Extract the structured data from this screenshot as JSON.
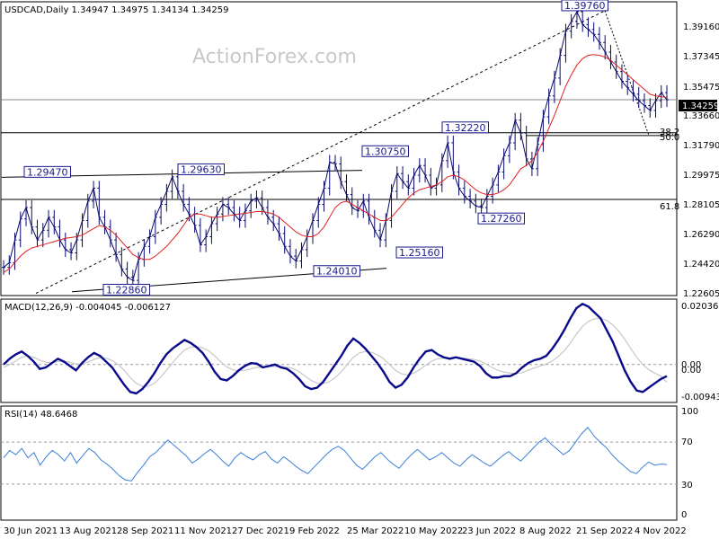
{
  "watermark": "ActionForex.com",
  "price_panel": {
    "header": "USDCAD,Daily  1.34947 1.34975 1.34134 1.34259",
    "current_price_label": "1.34259",
    "price_ticks": [
      "1.39160",
      "1.37345",
      "1.35475",
      "1.33660",
      "1.31790",
      "1.29975",
      "1.28105",
      "1.26290",
      "1.24420",
      "1.22605"
    ],
    "fib_labels": [
      "38.2",
      "50.0",
      "61.8"
    ],
    "annotations": [
      "1.39760",
      "1.32220",
      "1.30750",
      "1.29630",
      "1.29470",
      "1.27260",
      "1.25160",
      "1.24010",
      "1.22860"
    ]
  },
  "macd_panel": {
    "header": "MACD(12,26,9) -0.004045 -0.006127",
    "ticks": [
      "0.02036",
      "0.00",
      "0.00",
      "-0.009438"
    ]
  },
  "rsi_panel": {
    "header": "RSI(14) 48.6468",
    "ticks": [
      "100",
      "70",
      "30",
      "0"
    ]
  },
  "x_axis": [
    "30 Jun 2021",
    "13 Aug 2021",
    "28 Sep 2021",
    "11 Nov 2021",
    "27 Dec 2021",
    "9 Feb 2022",
    "25 Mar 2022",
    "10 May 2022",
    "23 Jun 2022",
    "8 Aug 2022",
    "21 Sep 2022",
    "4 Nov 2022"
  ],
  "colors": {
    "price_bars": "#0a0a6e",
    "sma": "#e02020",
    "macd_line": "#0a0a8c",
    "signal_line": "#c8c8c8",
    "rsi_line": "#3a7fd8",
    "label_text": "#1a1a8c"
  },
  "chart_data": [
    {
      "type": "line",
      "title": "USDCAD,Daily",
      "series": [
        {
          "name": "USDCAD",
          "values": [
            1.239,
            1.242,
            1.256,
            1.269,
            1.276,
            1.264,
            1.256,
            1.262,
            1.27,
            1.264,
            1.256,
            1.25,
            1.248,
            1.256,
            1.268,
            1.28,
            1.288,
            1.27,
            1.264,
            1.256,
            1.247,
            1.238,
            1.233,
            1.231,
            1.244,
            1.252,
            1.258,
            1.27,
            1.278,
            1.286,
            1.295,
            1.286,
            1.278,
            1.272,
            1.265,
            1.253,
            1.258,
            1.266,
            1.272,
            1.278,
            1.276,
            1.272,
            1.268,
            1.274,
            1.28,
            1.282,
            1.276,
            1.27,
            1.266,
            1.26,
            1.252,
            1.246,
            1.243,
            1.25,
            1.258,
            1.268,
            1.278,
            1.288,
            1.304,
            1.303,
            1.292,
            1.284,
            1.276,
            1.274,
            1.28,
            1.27,
            1.262,
            1.256,
            1.268,
            1.286,
            1.297,
            1.292,
            1.288,
            1.296,
            1.302,
            1.296,
            1.288,
            1.29,
            1.305,
            1.316,
            1.298,
            1.288,
            1.283,
            1.28,
            1.277,
            1.276,
            1.283,
            1.29,
            1.298,
            1.308,
            1.316,
            1.33,
            1.322,
            1.306,
            1.3,
            1.315,
            1.332,
            1.345,
            1.356,
            1.37,
            1.385,
            1.391,
            1.397,
            1.389,
            1.386,
            1.383,
            1.378,
            1.372,
            1.366,
            1.36,
            1.354,
            1.35,
            1.346,
            1.342,
            1.339,
            1.336,
            1.342,
            1.347,
            1.3426
          ]
        },
        {
          "name": "SMA",
          "values": [
            1.236,
            1.238,
            1.242,
            1.246,
            1.249,
            1.251,
            1.252,
            1.253,
            1.254,
            1.255,
            1.256,
            1.257,
            1.2575,
            1.258,
            1.259,
            1.261,
            1.263,
            1.265,
            1.264,
            1.262,
            1.259,
            1.255,
            1.251,
            1.247,
            1.245,
            1.244,
            1.244,
            1.246,
            1.249,
            1.252,
            1.256,
            1.26,
            1.265,
            1.27,
            1.272,
            1.272,
            1.271,
            1.27,
            1.27,
            1.2705,
            1.271,
            1.2715,
            1.272,
            1.2725,
            1.273,
            1.2735,
            1.2735,
            1.273,
            1.272,
            1.27,
            1.267,
            1.264,
            1.261,
            1.259,
            1.258,
            1.258,
            1.26,
            1.264,
            1.27,
            1.276,
            1.279,
            1.28,
            1.278,
            1.276,
            1.274,
            1.272,
            1.27,
            1.268,
            1.268,
            1.27,
            1.274,
            1.278,
            1.282,
            1.285,
            1.287,
            1.288,
            1.289,
            1.29,
            1.292,
            1.295,
            1.296,
            1.295,
            1.293,
            1.29,
            1.287,
            1.285,
            1.284,
            1.284,
            1.285,
            1.287,
            1.29,
            1.295,
            1.3,
            1.302,
            1.305,
            1.31,
            1.317,
            1.325,
            1.333,
            1.342,
            1.351,
            1.358,
            1.364,
            1.368,
            1.37,
            1.3705,
            1.37,
            1.369,
            1.367,
            1.364,
            1.361,
            1.358,
            1.355,
            1.352,
            1.349,
            1.346,
            1.345,
            1.3445,
            1.344
          ]
        }
      ],
      "ylim": [
        1.2222,
        1.402
      ],
      "yticks": [
        1.3916,
        1.37345,
        1.35475,
        1.3366,
        1.3179,
        1.29975,
        1.28105,
        1.2629,
        1.2442,
        1.22605
      ],
      "horizontal_levels": [
        1.3426,
        1.3222,
        1.3205,
        1.281
      ],
      "annotations": [
        {
          "text": "1.39760",
          "value": 1.3976
        },
        {
          "text": "1.32220",
          "value": 1.3222
        },
        {
          "text": "1.30750",
          "value": 1.3075
        },
        {
          "text": "1.29630",
          "value": 1.2963
        },
        {
          "text": "1.29470",
          "value": 1.2947
        },
        {
          "text": "1.27260",
          "value": 1.2726
        },
        {
          "text": "1.25160",
          "value": 1.2516
        },
        {
          "text": "1.24010",
          "value": 1.2401
        },
        {
          "text": "1.22860",
          "value": 1.2286
        }
      ]
    },
    {
      "type": "line",
      "title": "MACD(12,26,9) -0.004045 -0.006127",
      "series": [
        {
          "name": "MACD",
          "values": [
            0.0,
            0.002,
            0.0035,
            0.0045,
            0.003,
            0.001,
            -0.0015,
            -0.001,
            0.0005,
            0.002,
            0.001,
            -0.0005,
            -0.002,
            0.0005,
            0.0025,
            0.004,
            0.003,
            0.001,
            -0.001,
            -0.004,
            -0.007,
            -0.0095,
            -0.01,
            -0.0085,
            -0.006,
            -0.003,
            0.0005,
            0.0035,
            0.0055,
            0.007,
            0.0085,
            0.0075,
            0.006,
            0.004,
            0.001,
            -0.0025,
            -0.005,
            -0.0055,
            -0.004,
            -0.002,
            -0.0005,
            0.0005,
            0.0003,
            -0.001,
            -0.0005,
            0.0,
            -0.001,
            -0.0015,
            -0.003,
            -0.005,
            -0.0075,
            -0.0085,
            -0.008,
            -0.006,
            -0.003,
            0.0,
            0.003,
            0.0065,
            0.009,
            0.0075,
            0.0055,
            0.003,
            0.0005,
            -0.0025,
            -0.006,
            -0.008,
            -0.007,
            -0.0045,
            -0.001,
            0.002,
            0.0045,
            0.005,
            0.0035,
            0.0025,
            0.002,
            0.0025,
            0.002,
            0.0015,
            0.001,
            -0.0005,
            -0.003,
            -0.0045,
            -0.0045,
            -0.004,
            -0.004,
            -0.003,
            -0.001,
            0.0005,
            0.0015,
            0.002,
            0.003,
            0.0055,
            0.0085,
            0.012,
            0.016,
            0.0195,
            0.021,
            0.02,
            0.018,
            0.016,
            0.012,
            0.008,
            0.003,
            -0.002,
            -0.006,
            -0.009,
            -0.0095,
            -0.008,
            -0.0065,
            -0.005,
            -0.004
          ]
        },
        {
          "name": "Signal",
          "values": [
            -0.001,
            0.0,
            0.0012,
            0.0025,
            0.003,
            0.0025,
            0.0015,
            0.0008,
            0.0006,
            0.001,
            0.0012,
            0.0008,
            0.0002,
            0.0002,
            0.0008,
            0.0018,
            0.0024,
            0.0022,
            0.0014,
            0.0,
            -0.002,
            -0.0045,
            -0.0065,
            -0.0075,
            -0.0075,
            -0.0065,
            -0.0045,
            -0.002,
            0.0005,
            0.003,
            0.005,
            0.006,
            0.0062,
            0.0058,
            0.0048,
            0.003,
            0.001,
            -0.0008,
            -0.0018,
            -0.0022,
            -0.002,
            -0.0015,
            -0.001,
            -0.001,
            -0.0008,
            -0.0006,
            -0.0007,
            -0.0009,
            -0.0014,
            -0.0024,
            -0.004,
            -0.0055,
            -0.0065,
            -0.0066,
            -0.006,
            -0.0045,
            -0.0025,
            0.0,
            0.0025,
            0.004,
            0.0045,
            0.0042,
            0.0034,
            0.002,
            0.0,
            -0.002,
            -0.0032,
            -0.0036,
            -0.003,
            -0.0018,
            -0.0002,
            0.0012,
            0.002,
            0.0022,
            0.0022,
            0.0022,
            0.0022,
            0.002,
            0.0018,
            0.0012,
            0.0002,
            -0.001,
            -0.002,
            -0.0026,
            -0.003,
            -0.0032,
            -0.0028,
            -0.002,
            -0.0012,
            -0.0005,
            0.0002,
            0.0012,
            0.0028,
            0.0048,
            0.0075,
            0.0105,
            0.0132,
            0.015,
            0.0158,
            0.016,
            0.0153,
            0.0138,
            0.0116,
            0.0088,
            0.0056,
            0.0025,
            0.0,
            -0.0018,
            -0.003,
            -0.004,
            -0.0061
          ]
        }
      ],
      "ylim": [
        -0.0125,
        0.022
      ],
      "yticks": [
        0.02036,
        0.0,
        -0.009438
      ]
    },
    {
      "type": "line",
      "title": "RSI(14) 48.6468",
      "series": [
        {
          "name": "RSI(14)",
          "values": [
            55,
            62,
            58,
            64,
            55,
            60,
            48,
            56,
            62,
            58,
            52,
            60,
            50,
            57,
            64,
            60,
            53,
            49,
            44,
            38,
            34,
            33,
            41,
            48,
            56,
            60,
            66,
            72,
            67,
            62,
            57,
            50,
            54,
            59,
            63,
            58,
            52,
            47,
            55,
            60,
            56,
            53,
            58,
            61,
            54,
            50,
            56,
            52,
            47,
            43,
            40,
            46,
            52,
            58,
            63,
            66,
            62,
            55,
            48,
            44,
            50,
            56,
            60,
            54,
            49,
            45,
            52,
            58,
            63,
            58,
            53,
            56,
            60,
            55,
            50,
            47,
            53,
            58,
            54,
            50,
            47,
            52,
            57,
            61,
            56,
            52,
            58,
            64,
            70,
            74,
            68,
            63,
            58,
            62,
            70,
            78,
            84,
            76,
            70,
            65,
            58,
            52,
            47,
            42,
            40,
            46,
            51,
            48,
            49,
            48.6
          ]
        }
      ],
      "ylim": [
        0,
        100
      ],
      "yticks": [
        100,
        70,
        30,
        0
      ],
      "levels": [
        70,
        30
      ]
    }
  ]
}
